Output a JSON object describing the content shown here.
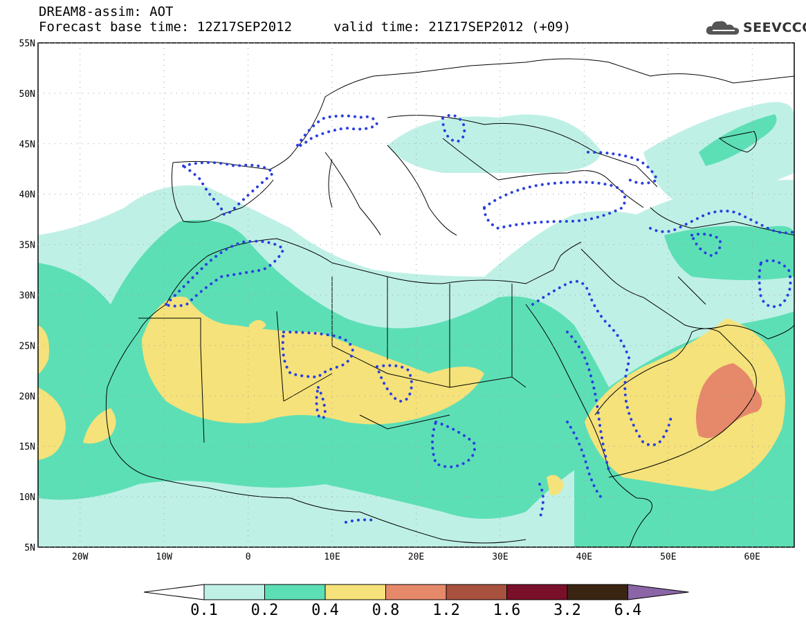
{
  "header": {
    "title": "DREAM8-assim: AOT",
    "base_time_label": "Forecast base time: 12Z17SEP2012",
    "valid_time_label": "valid time: 21Z17SEP2012 (+09)",
    "logo_text": "SEEVCCC"
  },
  "map": {
    "lon_range": [
      -25,
      65
    ],
    "lat_range": [
      5,
      55
    ],
    "lat_ticks": [
      "55N",
      "50N",
      "45N",
      "40N",
      "35N",
      "30N",
      "25N",
      "20N",
      "15N",
      "10N",
      "5N"
    ],
    "lon_ticks": [
      "20W",
      "10W",
      "0",
      "10E",
      "20E",
      "30E",
      "40E",
      "50E",
      "60E"
    ],
    "dotted_contour_color": "#2a3fe0",
    "coastline_color": "#000000"
  },
  "legend": {
    "levels": [
      "0.1",
      "0.2",
      "0.4",
      "0.8",
      "1.2",
      "1.6",
      "3.2",
      "6.4"
    ],
    "colors": [
      "#ffffff",
      "#bff0e6",
      "#5ddfb6",
      "#f5e27a",
      "#e6896b",
      "#a8513e",
      "#7a0f2a",
      "#3a2412",
      "#8a66a6"
    ]
  }
}
